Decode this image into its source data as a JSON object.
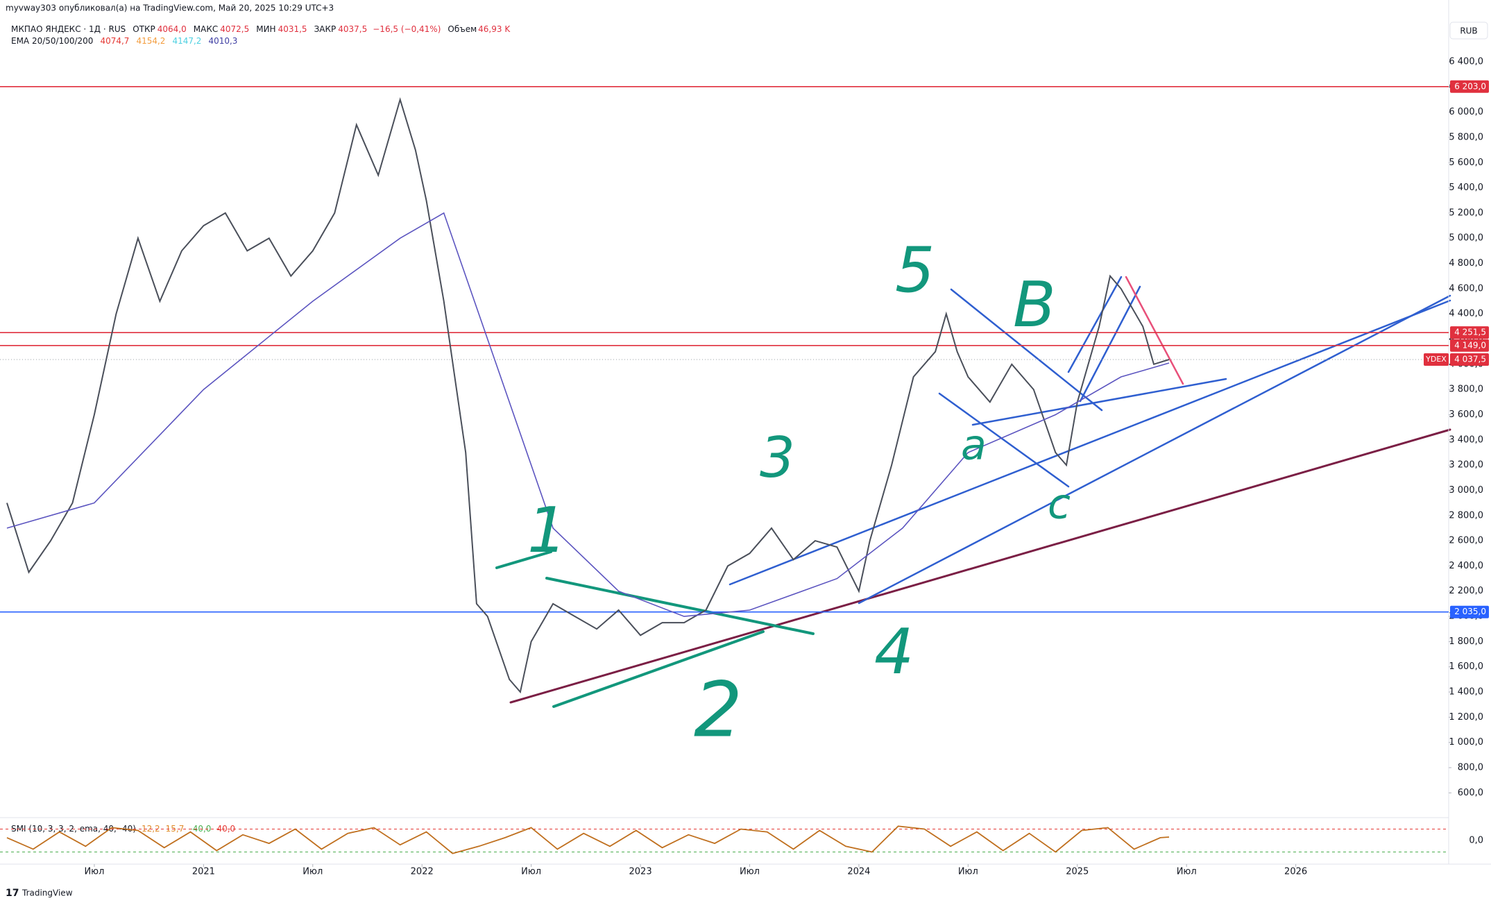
{
  "header": {
    "published": "myvway303 опубликовал(а) на TradingView.com, Май 20, 2025 10:29 UTC+3",
    "symbol": "МКПАО ЯНДЕКС · 1Д · RUS",
    "stats": [
      {
        "name": "ОТКР",
        "text": "4064,0"
      },
      {
        "name": "МАКС",
        "text": "4072,5"
      },
      {
        "name": "МИН",
        "text": "4031,5"
      },
      {
        "name": "ЗАКР",
        "text": "4037,5"
      }
    ],
    "change": "−16,5 (−0,41%)",
    "volume_name": "Объем",
    "volume": "46,93 K",
    "ema_name": "EMA 20/50/100/200",
    "ema_values": [
      {
        "text": "4074,7",
        "color": "#e53935"
      },
      {
        "text": "4154,2",
        "color": "#f39c3d"
      },
      {
        "text": "4147,2",
        "color": "#4dd0e1"
      },
      {
        "text": "4010,3",
        "color": "#3f3fa3"
      }
    ],
    "currency": "RUB",
    "brand": "TradingView"
  },
  "chart_data": {
    "type": "line",
    "xlim": [
      2020.1,
      2026.7
    ],
    "xticks": [
      {
        "value": 2020.5,
        "label": "Июл"
      },
      {
        "value": 2021,
        "label": "2021"
      },
      {
        "value": 2021.5,
        "label": "Июл"
      },
      {
        "value": 2022,
        "label": "2022"
      },
      {
        "value": 2022.5,
        "label": "Июл"
      },
      {
        "value": 2023,
        "label": "2023"
      },
      {
        "value": 2023.5,
        "label": "Июл"
      },
      {
        "value": 2024,
        "label": "2024"
      },
      {
        "value": 2024.5,
        "label": "Июл"
      },
      {
        "value": 2025,
        "label": "2025"
      },
      {
        "value": 2025.5,
        "label": "Июл"
      },
      {
        "value": 2026,
        "label": "2026"
      }
    ],
    "ylim": [
      420,
      6890
    ],
    "yticks": [
      {
        "value": 600,
        "label": "600,0"
      },
      {
        "value": 800,
        "label": "800,0"
      },
      {
        "value": 1000,
        "label": "1 000,0"
      },
      {
        "value": 1200,
        "label": "1 200,0"
      },
      {
        "value": 1400,
        "label": "1 400,0"
      },
      {
        "value": 1600,
        "label": "1 600,0"
      },
      {
        "value": 1800,
        "label": "1 800,0"
      },
      {
        "value": 2000,
        "label": "2 000,0"
      },
      {
        "value": 2200,
        "label": "2 200,0"
      },
      {
        "value": 2400,
        "label": "2 400,0"
      },
      {
        "value": 2600,
        "label": "2 600,0"
      },
      {
        "value": 2800,
        "label": "2 800,0"
      },
      {
        "value": 3000,
        "label": "3 000,0"
      },
      {
        "value": 3200,
        "label": "3 200,0"
      },
      {
        "value": 3400,
        "label": "3 400,0"
      },
      {
        "value": 3600,
        "label": "3 600,0"
      },
      {
        "value": 3800,
        "label": "3 800,0"
      },
      {
        "value": 4000,
        "label": "4 000,0"
      },
      {
        "value": 4200,
        "label": "4 200,0"
      },
      {
        "value": 4400,
        "label": "4 400,0"
      },
      {
        "value": 4600,
        "label": "4 600,0"
      },
      {
        "value": 4800,
        "label": "4 800,0"
      },
      {
        "value": 5000,
        "label": "5 000,0"
      },
      {
        "value": 5200,
        "label": "5 200,0"
      },
      {
        "value": 5400,
        "label": "5 400,0"
      },
      {
        "value": 5600,
        "label": "5 600,0"
      },
      {
        "value": 5800,
        "label": "5 800,0"
      },
      {
        "value": 6000,
        "label": "6 000,0"
      },
      {
        "value": 6200,
        "label": "6 200,0"
      },
      {
        "value": 6400,
        "label": "6 400,0"
      }
    ],
    "grid": false,
    "series": [
      {
        "name": "YDEX",
        "color": "#4a4f5a",
        "x": [
          2020.1,
          2020.2,
          2020.3,
          2020.4,
          2020.5,
          2020.6,
          2020.7,
          2020.8,
          2020.9,
          2021.0,
          2021.1,
          2021.2,
          2021.3,
          2021.4,
          2021.5,
          2021.6,
          2021.7,
          2021.8,
          2021.9,
          2021.97,
          2022.02,
          2022.1,
          2022.15,
          2022.2,
          2022.25,
          2022.3,
          2022.4,
          2022.45,
          2022.5,
          2022.6,
          2022.7,
          2022.8,
          2022.9,
          2023.0,
          2023.1,
          2023.2,
          2023.3,
          2023.4,
          2023.5,
          2023.6,
          2023.7,
          2023.8,
          2023.9,
          2024.0,
          2024.05,
          2024.15,
          2024.25,
          2024.35,
          2024.4,
          2024.45,
          2024.5,
          2024.6,
          2024.7,
          2024.8,
          2024.9,
          2024.95,
          2025.0,
          2025.1,
          2025.15,
          2025.2,
          2025.3,
          2025.35,
          2025.42
        ],
        "values": [
          2900,
          2350,
          2600,
          2900,
          3600,
          4400,
          5000,
          4500,
          4900,
          5100,
          5200,
          4900,
          5000,
          4700,
          4900,
          5200,
          5900,
          5500,
          6100,
          5700,
          5300,
          4500,
          3900,
          3300,
          2100,
          2000,
          1500,
          1400,
          1800,
          2100,
          2000,
          1900,
          2050,
          1850,
          1950,
          1950,
          2050,
          2400,
          2500,
          2700,
          2450,
          2600,
          2550,
          2200,
          2600,
          3200,
          3900,
          4100,
          4400,
          4100,
          3900,
          3700,
          4000,
          3800,
          3300,
          3200,
          3700,
          4300,
          4700,
          4600,
          4300,
          4000,
          4037.5
        ]
      },
      {
        "name": "EMA 200",
        "color": "#5c55c0",
        "x": [
          2020.1,
          2020.5,
          2021.0,
          2021.5,
          2021.9,
          2022.1,
          2022.3,
          2022.6,
          2022.9,
          2023.2,
          2023.5,
          2023.9,
          2024.2,
          2024.5,
          2024.9,
          2025.2,
          2025.42
        ],
        "values": [
          2700,
          2900,
          3800,
          4500,
          5000,
          5200,
          4200,
          2700,
          2200,
          2000,
          2050,
          2300,
          2700,
          3300,
          3600,
          3900,
          4010.3
        ]
      }
    ],
    "price_lines": [
      {
        "value": 6203,
        "label": "6 203,0",
        "color": "#e0303e"
      },
      {
        "value": 4251.5,
        "label": "4 251,5",
        "color": "#e0303e"
      },
      {
        "value": 4149,
        "label": "4 149,0",
        "color": "#e0303e"
      },
      {
        "value": 2035,
        "label": "2 035,0",
        "color": "#2962ff"
      }
    ],
    "last_price": {
      "value": 4037.5,
      "label": "4 037,5",
      "ticker": "YDEX",
      "color": "#e0303e"
    },
    "annotations": [
      "1",
      "2",
      "3",
      "4",
      "5",
      "a",
      "B",
      "c"
    ],
    "indicator": {
      "title": "SMI (10, 3, 3, 2, ema, 40, -40)",
      "readouts": [
        {
          "text": "12,2",
          "color": "#e08a2a"
        },
        {
          "text": "15,7",
          "color": "#e08a2a"
        },
        {
          "text": "-40,0",
          "color": "#4caf50"
        },
        {
          "text": "40,0",
          "color": "#e53935"
        }
      ],
      "ylim": [
        -75,
        75
      ],
      "yticks": [
        {
          "value": 0,
          "label": "0,0"
        }
      ],
      "levels": [
        {
          "value": 40,
          "color": "#e53935"
        },
        {
          "value": -40,
          "color": "#4caf50"
        }
      ],
      "x": [
        2020.1,
        2020.22,
        2020.34,
        2020.46,
        2020.58,
        2020.7,
        2020.82,
        2020.94,
        2021.06,
        2021.18,
        2021.3,
        2021.42,
        2021.54,
        2021.66,
        2021.78,
        2021.9,
        2022.02,
        2022.14,
        2022.26,
        2022.38,
        2022.5,
        2022.62,
        2022.74,
        2022.86,
        2022.98,
        2023.1,
        2023.22,
        2023.34,
        2023.46,
        2023.58,
        2023.7,
        2023.82,
        2023.94,
        2024.06,
        2024.18,
        2024.3,
        2024.42,
        2024.54,
        2024.66,
        2024.78,
        2024.9,
        2025.02,
        2025.14,
        2025.26,
        2025.38,
        2025.42
      ],
      "values": [
        10,
        -30,
        30,
        -20,
        45,
        35,
        -25,
        30,
        -35,
        20,
        -10,
        40,
        -30,
        25,
        45,
        -15,
        30,
        -45,
        -20,
        10,
        45,
        -30,
        25,
        -20,
        35,
        -25,
        20,
        -10,
        40,
        30,
        -30,
        35,
        -20,
        -40,
        50,
        40,
        -20,
        30,
        -35,
        25,
        -40,
        35,
        45,
        -30,
        10,
        12.2
      ]
    }
  }
}
